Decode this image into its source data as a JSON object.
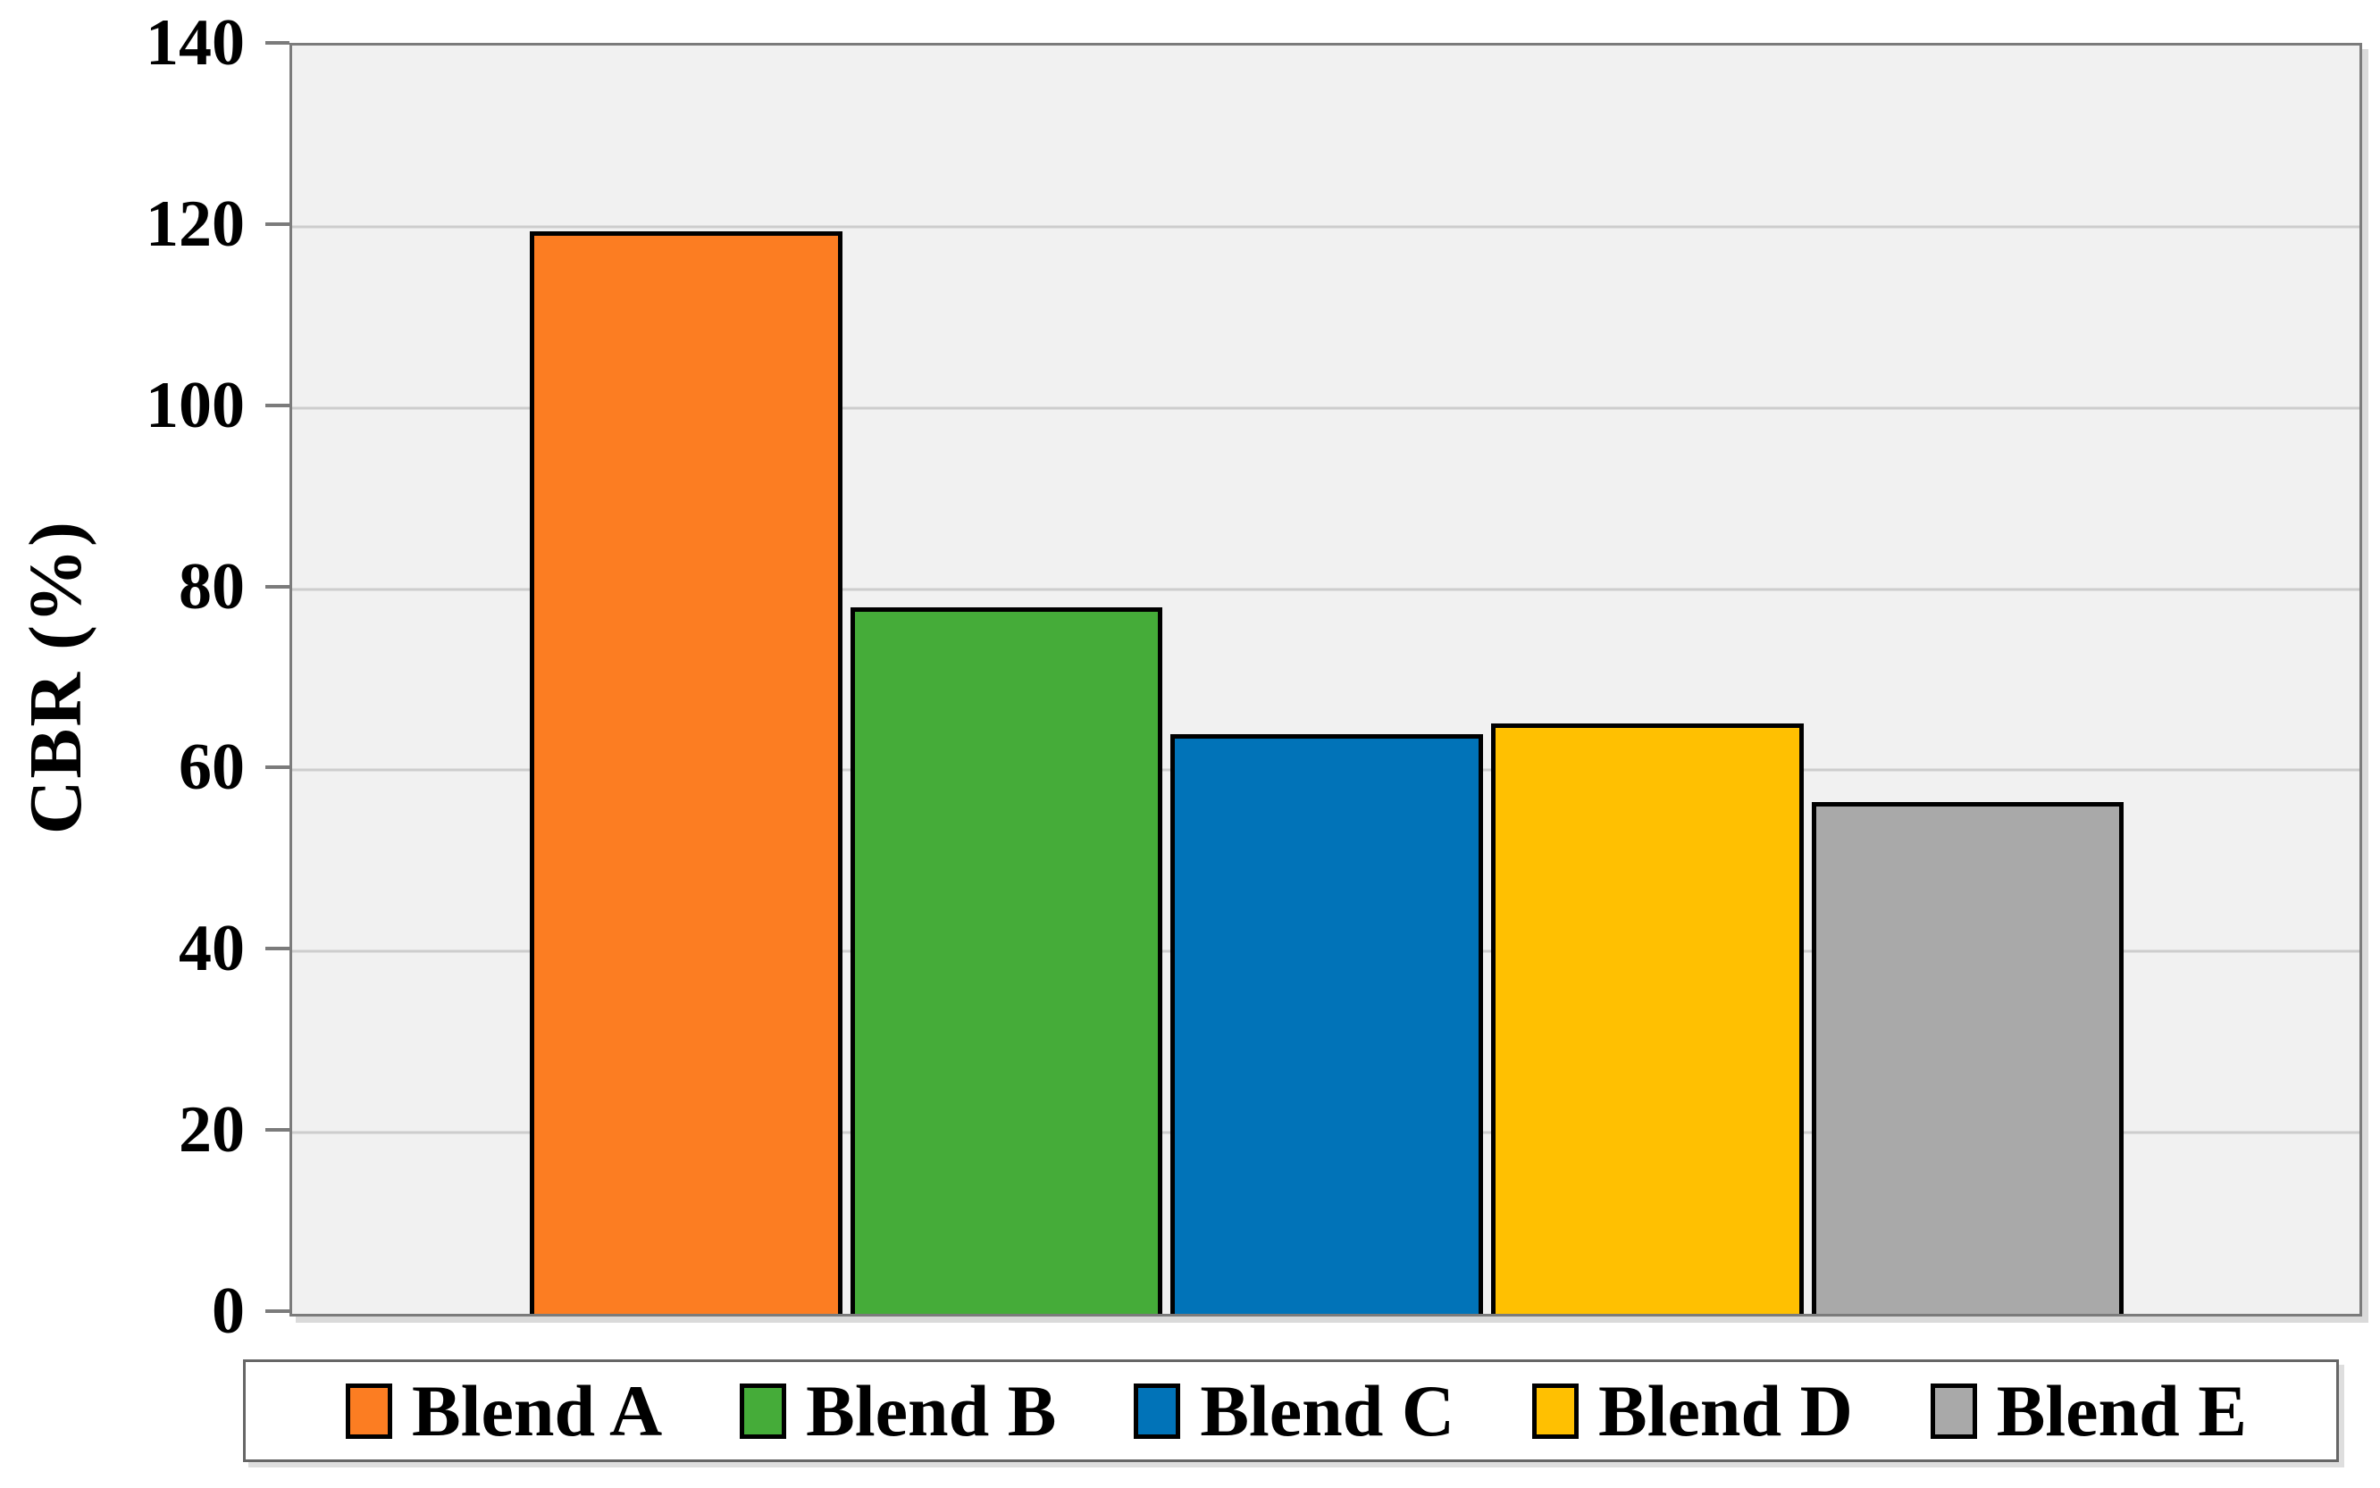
{
  "chart_data": {
    "type": "bar",
    "title": "",
    "xlabel": "",
    "ylabel": "CBR (%)",
    "categories": [
      "Blend A",
      "Blend B",
      "Blend C",
      "Blend D",
      "Blend E"
    ],
    "values": [
      119.5,
      78,
      64,
      65.2,
      56.5
    ],
    "ylim": [
      0,
      140
    ],
    "yticks": [
      0,
      20,
      40,
      60,
      80,
      100,
      120,
      140
    ],
    "grid": true,
    "legend_position": "bottom",
    "plot_bg_color": "#f1f1f1",
    "grid_color": "#cdcdcd",
    "axis_line_color": "#7b7b7b",
    "bar_border_color": "#000000",
    "series_colors": [
      "#fc7d22",
      "#45ac39",
      "#0173b8",
      "#ffc001",
      "#a9a9a9"
    ]
  }
}
